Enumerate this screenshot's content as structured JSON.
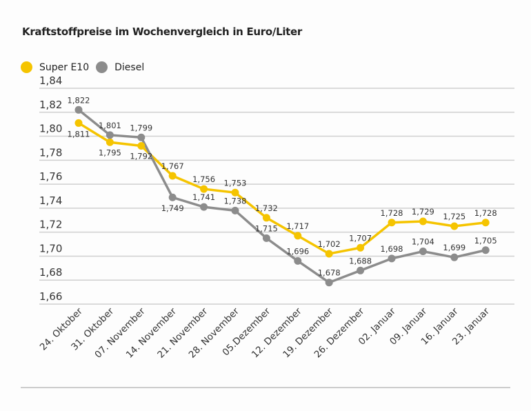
{
  "chart_data": {
    "type": "line",
    "title": "Kraftstoffpreise im Wochenvergleich in Euro/Liter",
    "categories": [
      "24. Oktober",
      "31. Oktober",
      "07. November",
      "14. November",
      "21. November",
      "28. November",
      "05.Dezember",
      "12. Dezember",
      "19. Dezember",
      "26. Dezember",
      "02. Januar",
      "09. Januar",
      "16. Januar",
      "23. Januar"
    ],
    "series": [
      {
        "name": "Super E10",
        "color": "#f5c400",
        "values": [
          1.811,
          1.795,
          1.792,
          1.767,
          1.756,
          1.753,
          1.732,
          1.717,
          1.702,
          1.707,
          1.728,
          1.729,
          1.725,
          1.728
        ],
        "labels": [
          "1,811",
          "1,795",
          "1,792",
          "1,767",
          "1,756",
          "1,753",
          "1,732",
          "1,717",
          "1,702",
          "1,707",
          "1,728",
          "1,729",
          "1,725",
          "1,728"
        ]
      },
      {
        "name": "Diesel",
        "color": "#8c8c8c",
        "values": [
          1.822,
          1.801,
          1.799,
          1.749,
          1.741,
          1.738,
          1.715,
          1.696,
          1.678,
          1.688,
          1.698,
          1.704,
          1.699,
          1.705
        ],
        "labels": [
          "1,822",
          "1,801",
          "1,799",
          "1,749",
          "1,741",
          "1,738",
          "1,715",
          "1,696",
          "1,678",
          "1,688",
          "1,698",
          "1,704",
          "1,699",
          "1,705"
        ]
      }
    ],
    "ylim": [
      1.66,
      1.84
    ],
    "yticks": [
      1.84,
      1.82,
      1.8,
      1.78,
      1.76,
      1.74,
      1.72,
      1.7,
      1.68,
      1.66
    ],
    "ytick_labels": [
      "1,84",
      "1,82",
      "1,80",
      "1,78",
      "1,76",
      "1,74",
      "1,72",
      "1,70",
      "1,68",
      "1,66"
    ],
    "grid": true,
    "legend_position": "top-left"
  }
}
